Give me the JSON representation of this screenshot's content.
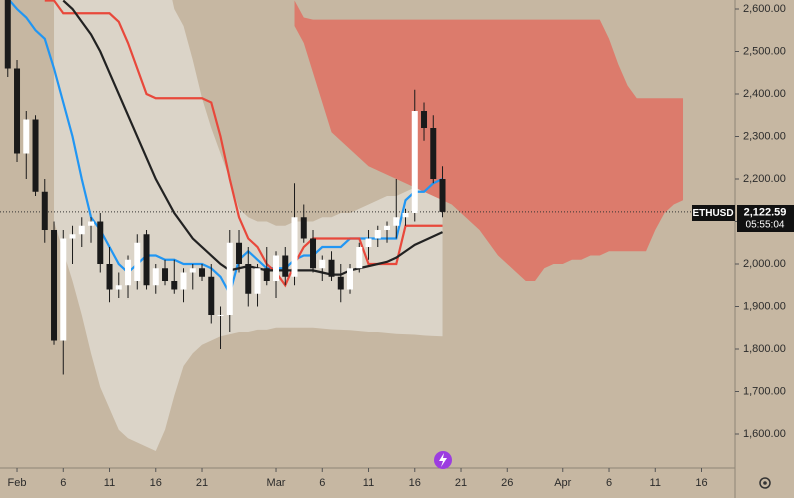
{
  "chart_data": {
    "type": "candlestick",
    "symbol": "ETHUSD",
    "countdown": "05:55:04",
    "price_label": {
      "value": 2122.59,
      "label": "2,122.59"
    },
    "up_color": "#ffffff",
    "down_color": "#1a1a1a",
    "xlim": [
      -1.84,
      77.62
    ],
    "ylim": [
      1520,
      2621.2
    ],
    "xticks": [
      {
        "value": 0,
        "label": "Feb"
      },
      {
        "value": 5,
        "label": "6"
      },
      {
        "value": 10,
        "label": "11"
      },
      {
        "value": 15,
        "label": "16"
      },
      {
        "value": 20,
        "label": "21"
      },
      {
        "value": 28,
        "label": "Mar"
      },
      {
        "value": 33,
        "label": "6"
      },
      {
        "value": 38,
        "label": "11"
      },
      {
        "value": 43,
        "label": "16"
      },
      {
        "value": 48,
        "label": "21"
      },
      {
        "value": 53,
        "label": "26"
      },
      {
        "value": 59,
        "label": "Apr"
      },
      {
        "value": 64,
        "label": "6"
      },
      {
        "value": 69,
        "label": "11"
      },
      {
        "value": 74,
        "label": "16"
      }
    ],
    "yticks": [
      {
        "value": 1600,
        "label": "1,600.00"
      },
      {
        "value": 1700,
        "label": "1,700.00"
      },
      {
        "value": 1800,
        "label": "1,800.00"
      },
      {
        "value": 1900,
        "label": "1,900.00"
      },
      {
        "value": 2000,
        "label": "2,000.00"
      },
      {
        "value": 2100,
        "label": "2,100.00"
      },
      {
        "value": 2200,
        "label": "2,200.00"
      },
      {
        "value": 2300,
        "label": "2,300.00"
      },
      {
        "value": 2400,
        "label": "2,400.00"
      },
      {
        "value": 2500,
        "label": "2,500.00"
      },
      {
        "value": 2600,
        "label": "2,600.00"
      }
    ],
    "x": [
      -1,
      0,
      1,
      2,
      3,
      4,
      5,
      6,
      7,
      8,
      9,
      10,
      11,
      12,
      13,
      14,
      15,
      16,
      17,
      18,
      19,
      20,
      21,
      22,
      23,
      24,
      25,
      26,
      27,
      28,
      29,
      30,
      31,
      32,
      33,
      34,
      35,
      36,
      37,
      38,
      39,
      40,
      41,
      42,
      43,
      44,
      45,
      46
    ],
    "open": [
      2640,
      2460,
      2260,
      2340,
      2170,
      2080,
      1820,
      2060,
      2070,
      2090,
      2100,
      2000,
      1940,
      1950,
      1960,
      2070,
      1950,
      1990,
      1960,
      1940,
      1980,
      1990,
      1970,
      1880,
      1880,
      2050,
      2000,
      1930,
      1990,
      1960,
      2020,
      1970,
      2110,
      2060,
      1990,
      2010,
      1970,
      1940,
      1990,
      2040,
      2060,
      2080,
      2090,
      2110,
      2120,
      2360,
      2320,
      2200
    ],
    "high": [
      2680,
      2480,
      2360,
      2350,
      2200,
      2100,
      2080,
      2090,
      2110,
      2110,
      2120,
      2040,
      1980,
      2020,
      2070,
      2080,
      2000,
      2010,
      2010,
      1990,
      2000,
      2000,
      2000,
      1900,
      2080,
      2080,
      2040,
      2000,
      2040,
      2030,
      2040,
      2190,
      2140,
      2080,
      2020,
      2030,
      2000,
      2000,
      2050,
      2080,
      2090,
      2100,
      2200,
      2130,
      2410,
      2380,
      2350,
      2230
    ],
    "low": [
      2440,
      2240,
      2200,
      2160,
      2050,
      1810,
      1740,
      2000,
      2040,
      2050,
      1980,
      1910,
      1920,
      1920,
      1940,
      1940,
      1930,
      1950,
      1930,
      1910,
      1940,
      1960,
      1860,
      1800,
      1840,
      1980,
      1900,
      1900,
      1950,
      1920,
      1950,
      1950,
      2050,
      1980,
      1960,
      1960,
      1910,
      1930,
      1980,
      2010,
      2040,
      2050,
      2060,
      2090,
      2100,
      2290,
      2190,
      2110
    ],
    "close": [
      2460,
      2260,
      2340,
      2170,
      2080,
      1820,
      2060,
      2070,
      2090,
      2100,
      2000,
      1940,
      1950,
      2010,
      2050,
      1950,
      1990,
      1960,
      1940,
      1980,
      1990,
      1970,
      1880,
      1880,
      2050,
      2000,
      1930,
      1990,
      1960,
      2020,
      1970,
      2110,
      2060,
      1990,
      2010,
      1970,
      1940,
      1990,
      2040,
      2060,
      2080,
      2090,
      2110,
      2120,
      2360,
      2320,
      2200,
      2122.59
    ],
    "lines": [
      {
        "color": "#2196f3",
        "values": [
          2625,
          2600,
          2580,
          2550,
          2530,
          2460,
          2380,
          2300,
          2200,
          2110,
          2080,
          2040,
          2000,
          1980,
          2000,
          2020,
          2020,
          2010,
          2010,
          2000,
          2000,
          2000,
          1990,
          1970,
          1930,
          2010,
          2030,
          2010,
          1990,
          1990,
          1990,
          2010,
          2020,
          2020,
          2040,
          2040,
          2040,
          2060,
          2060,
          2060,
          2060,
          2060,
          2060,
          2150,
          2170,
          2170,
          2190,
          2200
        ]
      },
      {
        "color": "#e8483b",
        "values": [
          null,
          null,
          null,
          null,
          2620,
          2620,
          2590,
          2590,
          2590,
          2590,
          2590,
          2590,
          2570,
          2520,
          2460,
          2400,
          2390,
          2390,
          2390,
          2390,
          2390,
          2390,
          2380,
          2300,
          2200,
          2110,
          2060,
          2040,
          2000,
          1980,
          1950,
          2000,
          2040,
          2060,
          2060,
          2060,
          2060,
          2060,
          2060,
          2000,
          2000,
          2000,
          2000,
          2090,
          2090,
          2090,
          2090,
          2090
        ]
      },
      {
        "color": "#222222",
        "values": [
          null,
          null,
          null,
          null,
          null,
          null,
          2620,
          2600,
          2570,
          2540,
          2500,
          2450,
          2400,
          2350,
          2300,
          2250,
          2200,
          2160,
          2120,
          2090,
          2060,
          2040,
          2020,
          2000,
          1985,
          1990,
          1995,
          1990,
          1985,
          1985,
          1985,
          1985,
          1985,
          1985,
          1980,
          1975,
          1975,
          1985,
          1990,
          1995,
          2000,
          2005,
          2015,
          2030,
          2045,
          2055,
          2065,
          2075
        ]
      }
    ],
    "bands": [
      {
        "color": "#dbd4c8",
        "x": [
          4,
          5,
          6,
          7,
          8,
          9,
          10,
          11,
          12,
          13,
          14,
          15,
          16,
          17,
          18,
          19,
          20,
          21,
          22,
          23,
          24,
          25,
          26,
          27,
          28,
          29,
          30,
          31,
          32,
          33,
          34,
          35,
          36,
          37,
          38,
          39,
          40,
          41,
          42,
          43,
          44,
          45,
          46
        ],
        "upper": [
          2700,
          2700,
          2700,
          2700,
          2700,
          2700,
          2700,
          2700,
          2700,
          2700,
          2700,
          2700,
          2700,
          2600,
          2560,
          2480,
          2390,
          2320,
          2260,
          2200,
          2130,
          2110,
          2100,
          2100,
          2090,
          2090,
          2100,
          2100,
          2100,
          2110,
          2110,
          2120,
          2120,
          2130,
          2140,
          2150,
          2160,
          2160,
          2170,
          2180,
          2180,
          2180,
          2180
        ],
        "lower": [
          2100,
          2030,
          1960,
          1880,
          1790,
          1710,
          1660,
          1610,
          1590,
          1580,
          1570,
          1560,
          1610,
          1690,
          1760,
          1790,
          1810,
          1820,
          1830,
          1835,
          1840,
          1840,
          1845,
          1845,
          1850,
          1850,
          1850,
          1850,
          1850,
          1848,
          1846,
          1845,
          1844,
          1842,
          1840,
          1840,
          1838,
          1836,
          1835,
          1834,
          1832,
          1831,
          1830
        ]
      },
      {
        "color": "#dc7b6c",
        "x": [
          30,
          31,
          32,
          33,
          34,
          35,
          36,
          37,
          38,
          39,
          40,
          41,
          42,
          43,
          44,
          45,
          46,
          47,
          48,
          49,
          50,
          51,
          52,
          53,
          54,
          55,
          56,
          57,
          58,
          59,
          60,
          61,
          62,
          63,
          64,
          65,
          66,
          67,
          68,
          69,
          70,
          71,
          72
        ],
        "upper": [
          2620,
          2580,
          2575,
          2575,
          2575,
          2575,
          2575,
          2575,
          2575,
          2575,
          2575,
          2575,
          2575,
          2575,
          2575,
          2575,
          2575,
          2575,
          2575,
          2575,
          2575,
          2575,
          2575,
          2575,
          2575,
          2575,
          2575,
          2575,
          2575,
          2575,
          2575,
          2575,
          2575,
          2575,
          2530,
          2470,
          2420,
          2390,
          2390,
          2390,
          2390,
          2390,
          2390
        ],
        "lower": [
          2560,
          2520,
          2450,
          2380,
          2310,
          2290,
          2270,
          2250,
          2230,
          2220,
          2210,
          2200,
          2190,
          2180,
          2170,
          2160,
          2150,
          2140,
          2120,
          2100,
          2080,
          2050,
          2020,
          2000,
          1980,
          1960,
          1960,
          1990,
          2000,
          2000,
          2010,
          2010,
          2020,
          2020,
          2030,
          2030,
          2030,
          2030,
          2030,
          2080,
          2120,
          2140,
          2150
        ]
      }
    ]
  }
}
